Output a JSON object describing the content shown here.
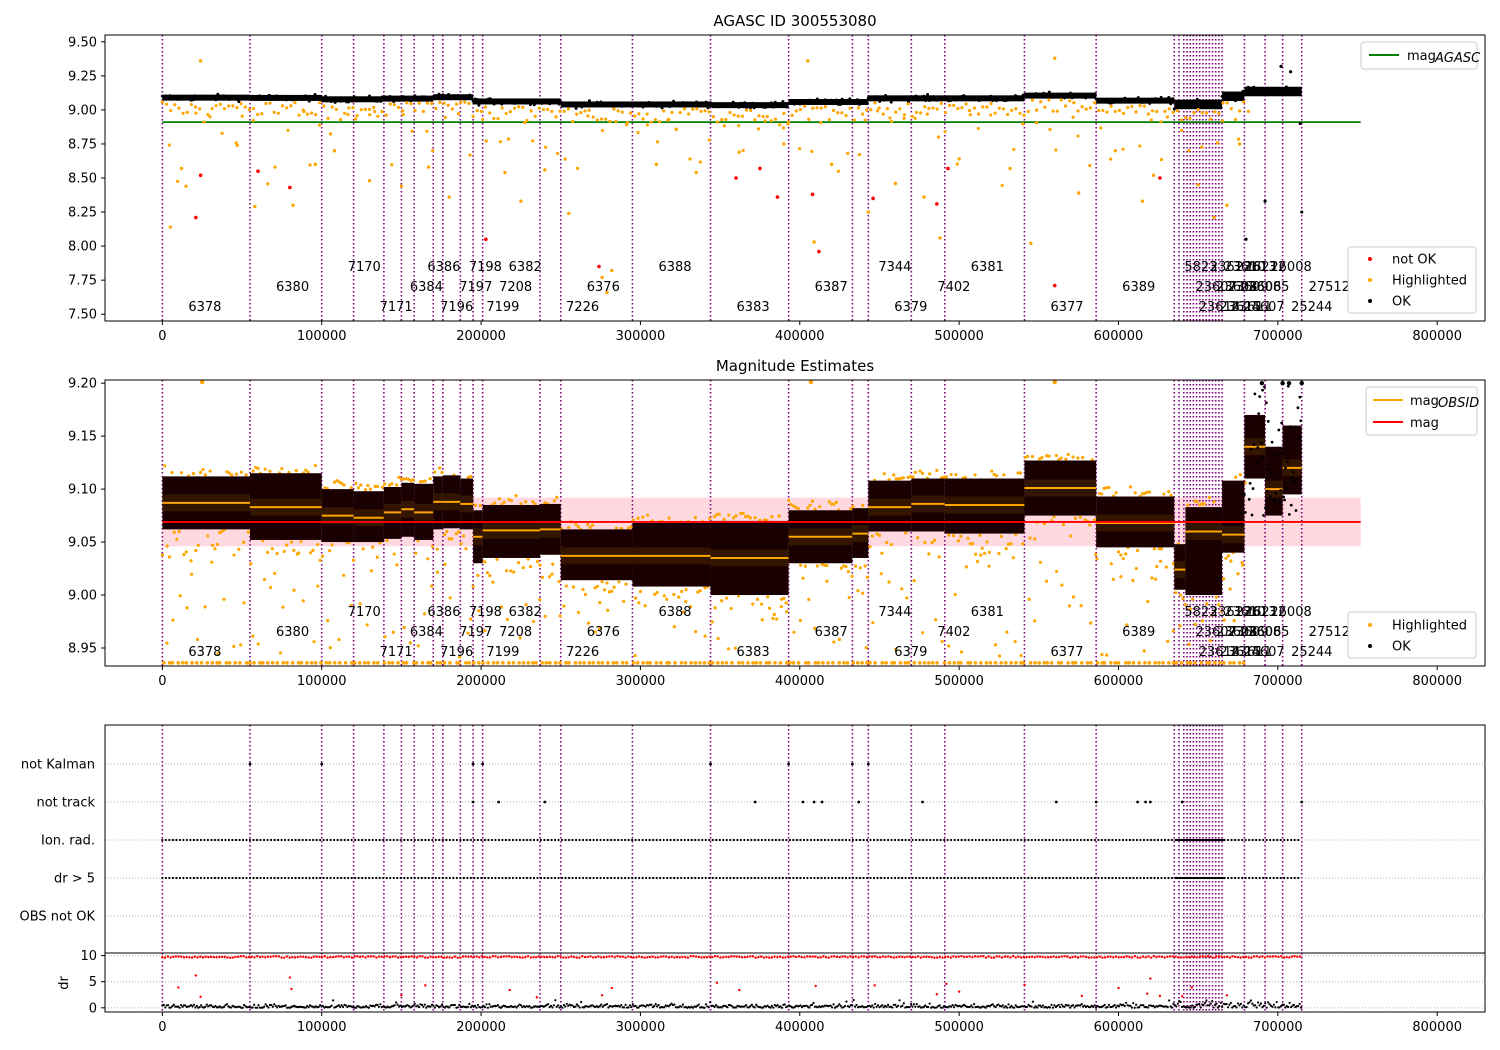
{
  "chart_data": [
    {
      "type": "scatter",
      "title": "AGASC ID 300553080",
      "xlim": [
        -36000,
        830000
      ],
      "ylim": [
        7.45,
        9.55
      ],
      "xticks": [
        0,
        100000,
        200000,
        300000,
        400000,
        500000,
        600000,
        700000,
        800000
      ],
      "xtick_labels": [
        "0",
        "100000",
        "200000",
        "300000",
        "400000",
        "500000",
        "600000",
        "700000",
        "800000"
      ],
      "yticks": [
        7.5,
        7.75,
        8.0,
        8.25,
        8.5,
        8.75,
        9.0,
        9.25,
        9.5
      ],
      "ytick_labels": [
        "7.50",
        "7.75",
        "8.00",
        "8.25",
        "8.50",
        "8.75",
        "9.00",
        "9.25",
        "9.50"
      ],
      "mag_agasc": 8.91,
      "legend_upper": [
        {
          "label": "mag",
          "sub": "AGASC",
          "color": "#008000"
        }
      ],
      "legend_lower": [
        {
          "label": "not OK",
          "color": "#ff0000"
        },
        {
          "label": "Highlighted",
          "color": "#ffa500"
        },
        {
          "label": "OK",
          "color": "#000000"
        }
      ],
      "not_ok_points": [
        [
          21000,
          8.21
        ],
        [
          24000,
          8.52
        ],
        [
          60000,
          8.55
        ],
        [
          80000,
          8.43
        ],
        [
          203000,
          8.05
        ],
        [
          274000,
          7.85
        ],
        [
          360000,
          8.5
        ],
        [
          375000,
          8.57
        ],
        [
          386000,
          8.36
        ],
        [
          408000,
          8.38
        ],
        [
          412000,
          7.96
        ],
        [
          446000,
          8.35
        ],
        [
          486000,
          8.31
        ],
        [
          493000,
          8.57
        ],
        [
          560000,
          7.71
        ],
        [
          626000,
          8.5
        ]
      ],
      "highlight_outliers": [
        [
          24000,
          9.36
        ],
        [
          5000,
          8.14
        ],
        [
          12000,
          8.57
        ],
        [
          47000,
          8.74
        ],
        [
          58000,
          8.29
        ],
        [
          82000,
          8.3
        ],
        [
          96000,
          8.6
        ],
        [
          108000,
          8.7
        ],
        [
          130000,
          8.48
        ],
        [
          150000,
          8.44
        ],
        [
          167000,
          8.58
        ],
        [
          180000,
          8.36
        ],
        [
          215000,
          8.54
        ],
        [
          225000,
          8.33
        ],
        [
          240000,
          8.56
        ],
        [
          255000,
          8.24
        ],
        [
          276000,
          7.77
        ],
        [
          279000,
          7.66
        ],
        [
          282000,
          7.82
        ],
        [
          310000,
          8.6
        ],
        [
          335000,
          8.54
        ],
        [
          362000,
          8.69
        ],
        [
          390000,
          8.75
        ],
        [
          405000,
          9.36
        ],
        [
          409000,
          8.03
        ],
        [
          420000,
          8.6
        ],
        [
          443000,
          8.25
        ],
        [
          460000,
          8.46
        ],
        [
          478000,
          8.36
        ],
        [
          488000,
          8.06
        ],
        [
          500000,
          8.64
        ],
        [
          532000,
          8.57
        ],
        [
          545000,
          8.02
        ],
        [
          560000,
          9.38
        ],
        [
          575000,
          8.39
        ],
        [
          598000,
          8.7
        ],
        [
          615000,
          8.33
        ],
        [
          622000,
          8.52
        ],
        [
          650000,
          8.45
        ],
        [
          660000,
          8.21
        ],
        [
          668000,
          8.3
        ],
        [
          676000,
          8.75
        ]
      ],
      "ok_outliers": [
        [
          692000,
          8.33
        ],
        [
          702000,
          9.32
        ],
        [
          708000,
          9.28
        ],
        [
          714000,
          8.9
        ],
        [
          715000,
          8.25
        ],
        [
          680000,
          8.05
        ]
      ],
      "segments": [
        {
          "x0": 0,
          "x1": 55000,
          "level": 9.09
        },
        {
          "x0": 55000,
          "x1": 100000,
          "level": 9.088
        },
        {
          "x0": 100000,
          "x1": 138000,
          "level": 9.078
        },
        {
          "x0": 138000,
          "x1": 170000,
          "level": 9.083
        },
        {
          "x0": 170000,
          "x1": 195000,
          "level": 9.093
        },
        {
          "x0": 195000,
          "x1": 250000,
          "level": 9.062
        },
        {
          "x0": 250000,
          "x1": 345000,
          "level": 9.04
        },
        {
          "x0": 345000,
          "x1": 393000,
          "level": 9.035
        },
        {
          "x0": 393000,
          "x1": 443000,
          "level": 9.058
        },
        {
          "x0": 443000,
          "x1": 541000,
          "level": 9.085
        },
        {
          "x0": 541000,
          "x1": 586000,
          "level": 9.105
        },
        {
          "x0": 586000,
          "x1": 635000,
          "level": 9.068
        },
        {
          "x0": 635000,
          "x1": 665000,
          "level": 9.04
        },
        {
          "x0": 665000,
          "x1": 679000,
          "level": 9.1
        },
        {
          "x0": 679000,
          "x1": 715000,
          "level": 9.135
        }
      ]
    },
    {
      "type": "scatter",
      "title": "Magnitude Estimates",
      "xlim": [
        -36000,
        830000
      ],
      "ylim": [
        8.933,
        9.203
      ],
      "xticks": [
        0,
        100000,
        200000,
        300000,
        400000,
        500000,
        600000,
        700000,
        800000
      ],
      "xtick_labels": [
        "0",
        "100000",
        "200000",
        "300000",
        "400000",
        "500000",
        "600000",
        "700000",
        "800000"
      ],
      "yticks": [
        8.95,
        9.0,
        9.05,
        9.1,
        9.15,
        9.2
      ],
      "ytick_labels": [
        "8.95",
        "9.00",
        "9.05",
        "9.10",
        "9.15",
        "9.20"
      ],
      "mag": 9.069,
      "mag_band": [
        9.046,
        9.092
      ],
      "legend_upper": [
        {
          "label": "mag",
          "sub": "OBSID",
          "color": "#ffa500"
        },
        {
          "label": "mag",
          "sub": "",
          "color": "#ff0000"
        }
      ],
      "legend_lower": [
        {
          "label": "Highlighted",
          "color": "#ffa500"
        },
        {
          "label": "OK",
          "color": "#000000"
        }
      ],
      "obsid_mags": [
        {
          "x0": 0,
          "x1": 55000,
          "mean": 9.087,
          "lo": 9.062,
          "hi": 9.112
        },
        {
          "x0": 55000,
          "x1": 100000,
          "mean": 9.083,
          "lo": 9.052,
          "hi": 9.115
        },
        {
          "x0": 100000,
          "x1": 120000,
          "mean": 9.075,
          "lo": 9.05,
          "hi": 9.1
        },
        {
          "x0": 120000,
          "x1": 139000,
          "mean": 9.073,
          "lo": 9.05,
          "hi": 9.098
        },
        {
          "x0": 139000,
          "x1": 150000,
          "mean": 9.078,
          "lo": 9.053,
          "hi": 9.102
        },
        {
          "x0": 150000,
          "x1": 158000,
          "mean": 9.081,
          "lo": 9.055,
          "hi": 9.106
        },
        {
          "x0": 158000,
          "x1": 170000,
          "mean": 9.078,
          "lo": 9.052,
          "hi": 9.105
        },
        {
          "x0": 170000,
          "x1": 176000,
          "mean": 9.088,
          "lo": 9.062,
          "hi": 9.112
        },
        {
          "x0": 176000,
          "x1": 187000,
          "mean": 9.088,
          "lo": 9.063,
          "hi": 9.113
        },
        {
          "x0": 187000,
          "x1": 195000,
          "mean": 9.086,
          "lo": 9.062,
          "hi": 9.11
        },
        {
          "x0": 195000,
          "x1": 201000,
          "mean": 9.055,
          "lo": 9.03,
          "hi": 9.08
        },
        {
          "x0": 201000,
          "x1": 237000,
          "mean": 9.061,
          "lo": 9.035,
          "hi": 9.085
        },
        {
          "x0": 237000,
          "x1": 250000,
          "mean": 9.062,
          "lo": 9.038,
          "hi": 9.086
        },
        {
          "x0": 250000,
          "x1": 295000,
          "mean": 9.037,
          "lo": 9.014,
          "hi": 9.062
        },
        {
          "x0": 295000,
          "x1": 344000,
          "mean": 9.037,
          "lo": 9.008,
          "hi": 9.068
        },
        {
          "x0": 344000,
          "x1": 393000,
          "mean": 9.035,
          "lo": 9.0,
          "hi": 9.07
        },
        {
          "x0": 393000,
          "x1": 433000,
          "mean": 9.055,
          "lo": 9.03,
          "hi": 9.08
        },
        {
          "x0": 433000,
          "x1": 443000,
          "mean": 9.058,
          "lo": 9.035,
          "hi": 9.082
        },
        {
          "x0": 443000,
          "x1": 470000,
          "mean": 9.083,
          "lo": 9.06,
          "hi": 9.108
        },
        {
          "x0": 470000,
          "x1": 491000,
          "mean": 9.086,
          "lo": 9.06,
          "hi": 9.11
        },
        {
          "x0": 491000,
          "x1": 541000,
          "mean": 9.085,
          "lo": 9.058,
          "hi": 9.11
        },
        {
          "x0": 541000,
          "x1": 586000,
          "mean": 9.101,
          "lo": 9.075,
          "hi": 9.127
        },
        {
          "x0": 586000,
          "x1": 635000,
          "mean": 9.068,
          "lo": 9.045,
          "hi": 9.093
        },
        {
          "x0": 635000,
          "x1": 642000,
          "mean": 9.024,
          "lo": 9.005,
          "hi": 9.048
        },
        {
          "x0": 642000,
          "x1": 665000,
          "mean": 9.06,
          "lo": 9.0,
          "hi": 9.083
        },
        {
          "x0": 665000,
          "x1": 679000,
          "mean": 9.057,
          "lo": 9.04,
          "hi": 9.108
        },
        {
          "x0": 679000,
          "x1": 692000,
          "mean": 9.14,
          "lo": 9.11,
          "hi": 9.17
        },
        {
          "x0": 692000,
          "x1": 703000,
          "mean": 9.1,
          "lo": 9.075,
          "hi": 9.14
        },
        {
          "x0": 703000,
          "x1": 715000,
          "mean": 9.12,
          "lo": 9.095,
          "hi": 9.16
        }
      ]
    },
    {
      "type": "scatter",
      "title": "",
      "xlim": [
        -36000,
        830000
      ],
      "flag_rows": [
        {
          "label": "not Kalman",
          "points": [
            55000,
            100000,
            195000,
            201000,
            344000,
            393000,
            433000,
            443000
          ]
        },
        {
          "label": "not track",
          "points": [
            195000,
            211000,
            240000,
            372000,
            402000,
            409000,
            414000,
            437000,
            477000,
            561000,
            586000,
            612000,
            617000,
            620000,
            640000,
            715000
          ]
        },
        {
          "label": "Ion. rad.",
          "dense": true
        },
        {
          "label": "dr > 5",
          "dense": true
        },
        {
          "label": "OBS not OK",
          "points": []
        }
      ]
    },
    {
      "type": "scatter",
      "ylabel": "dr",
      "xlim": [
        -36000,
        830000
      ],
      "ylim": [
        -0.8,
        10.5
      ],
      "yticks": [
        0,
        5,
        10
      ],
      "ytick_labels": [
        "0",
        "5",
        "10"
      ],
      "xticks": [
        0,
        100000,
        200000,
        300000,
        400000,
        500000,
        600000,
        700000,
        800000
      ],
      "xtick_labels": [
        "0",
        "100000",
        "200000",
        "300000",
        "400000",
        "500000",
        "600000",
        "700000",
        "800000"
      ],
      "sparse_red": [
        [
          10000,
          3.9
        ],
        [
          21000,
          6.2
        ],
        [
          24000,
          2.1
        ],
        [
          80000,
          5.8
        ],
        [
          81000,
          3.6
        ],
        [
          150000,
          2.4
        ],
        [
          165000,
          4.3
        ],
        [
          218000,
          3.4
        ],
        [
          235000,
          2.0
        ],
        [
          276000,
          2.4
        ],
        [
          282000,
          3.8
        ],
        [
          348000,
          4.8
        ],
        [
          362000,
          3.4
        ],
        [
          410000,
          4.2
        ],
        [
          447000,
          4.3
        ],
        [
          486000,
          2.6
        ],
        [
          492000,
          4.6
        ],
        [
          500000,
          3.1
        ],
        [
          541000,
          4.4
        ],
        [
          577000,
          2.3
        ],
        [
          600000,
          3.8
        ],
        [
          618000,
          2.7
        ],
        [
          620000,
          5.6
        ],
        [
          626000,
          2.3
        ],
        [
          640000,
          2.2
        ],
        [
          646000,
          3.9
        ],
        [
          668000,
          2.4
        ]
      ]
    }
  ],
  "obsids": [
    {
      "label": "6378",
      "x": 0,
      "row": 2
    },
    {
      "label": "6380",
      "x": 55000,
      "row": 1
    },
    {
      "label": "7170",
      "x": 100000,
      "row": 0
    },
    {
      "label": "7171",
      "x": 120000,
      "row": 2
    },
    {
      "label": "6384",
      "x": 139000,
      "row": 1
    },
    {
      "label": "6386",
      "x": 150000,
      "row": 0
    },
    {
      "label": "7196",
      "x": 158000,
      "row": 2
    },
    {
      "label": "7197",
      "x": 170000,
      "row": 1
    },
    {
      "label": "7198",
      "x": 176000,
      "row": 0
    },
    {
      "label": "7199",
      "x": 187000,
      "row": 2
    },
    {
      "label": "7208",
      "x": 195000,
      "row": 1
    },
    {
      "label": "6382",
      "x": 201000,
      "row": 0
    },
    {
      "label": "7226",
      "x": 237000,
      "row": 2
    },
    {
      "label": "6376",
      "x": 250000,
      "row": 1
    },
    {
      "label": "6388",
      "x": 295000,
      "row": 0
    },
    {
      "label": "6383",
      "x": 344000,
      "row": 2
    },
    {
      "label": "6387",
      "x": 393000,
      "row": 1
    },
    {
      "label": "7344",
      "x": 433000,
      "row": 0
    },
    {
      "label": "6379",
      "x": 443000,
      "row": 2
    },
    {
      "label": "7402",
      "x": 470000,
      "row": 1
    },
    {
      "label": "6381",
      "x": 491000,
      "row": 0
    },
    {
      "label": "6377",
      "x": 541000,
      "row": 2
    },
    {
      "label": "6389",
      "x": 586000,
      "row": 1
    },
    {
      "label": "5823",
      "x": 625000,
      "row": 0
    },
    {
      "label": "23607",
      "x": 632000,
      "row": 1
    },
    {
      "label": "23614",
      "x": 634000,
      "row": 2
    },
    {
      "label": "23612",
      "x": 641000,
      "row": 0
    },
    {
      "label": "23608",
      "x": 645000,
      "row": 1
    },
    {
      "label": "23615",
      "x": 647000,
      "row": 2
    },
    {
      "label": "23610",
      "x": 650000,
      "row": 0
    },
    {
      "label": "23609",
      "x": 652000,
      "row": 1
    },
    {
      "label": "23611",
      "x": 654000,
      "row": 2
    },
    {
      "label": "23613",
      "x": 657000,
      "row": 0
    },
    {
      "label": "23606",
      "x": 660000,
      "row": 1
    },
    {
      "label": "24607",
      "x": 662000,
      "row": 2
    },
    {
      "label": "26212",
      "x": 663000,
      "row": 0
    },
    {
      "label": "26085",
      "x": 665000,
      "row": 1
    },
    {
      "label": "26008",
      "x": 679000,
      "row": 0
    },
    {
      "label": "25244",
      "x": 692000,
      "row": 2
    },
    {
      "label": "27512",
      "x": 703000,
      "row": 1
    }
  ],
  "obs_lines": [
    0,
    55000,
    100000,
    120000,
    139000,
    150000,
    158000,
    170000,
    176000,
    187000,
    195000,
    201000,
    237000,
    250000,
    295000,
    344000,
    393000,
    433000,
    443000,
    470000,
    491000,
    541000,
    586000,
    635000,
    638000,
    641000,
    643000,
    645000,
    647000,
    649000,
    651000,
    653000,
    655000,
    657000,
    659000,
    661000,
    663000,
    665000,
    679000,
    692000,
    703000,
    715000
  ],
  "colors": {
    "highlight": "#ffa500",
    "ok": "#000000",
    "not_ok": "#ff0000",
    "agasc": "#008000",
    "mag": "#ff0000",
    "band": "#ffc0cb",
    "obs_line": "#800080",
    "grid": "#b0b0b0"
  }
}
